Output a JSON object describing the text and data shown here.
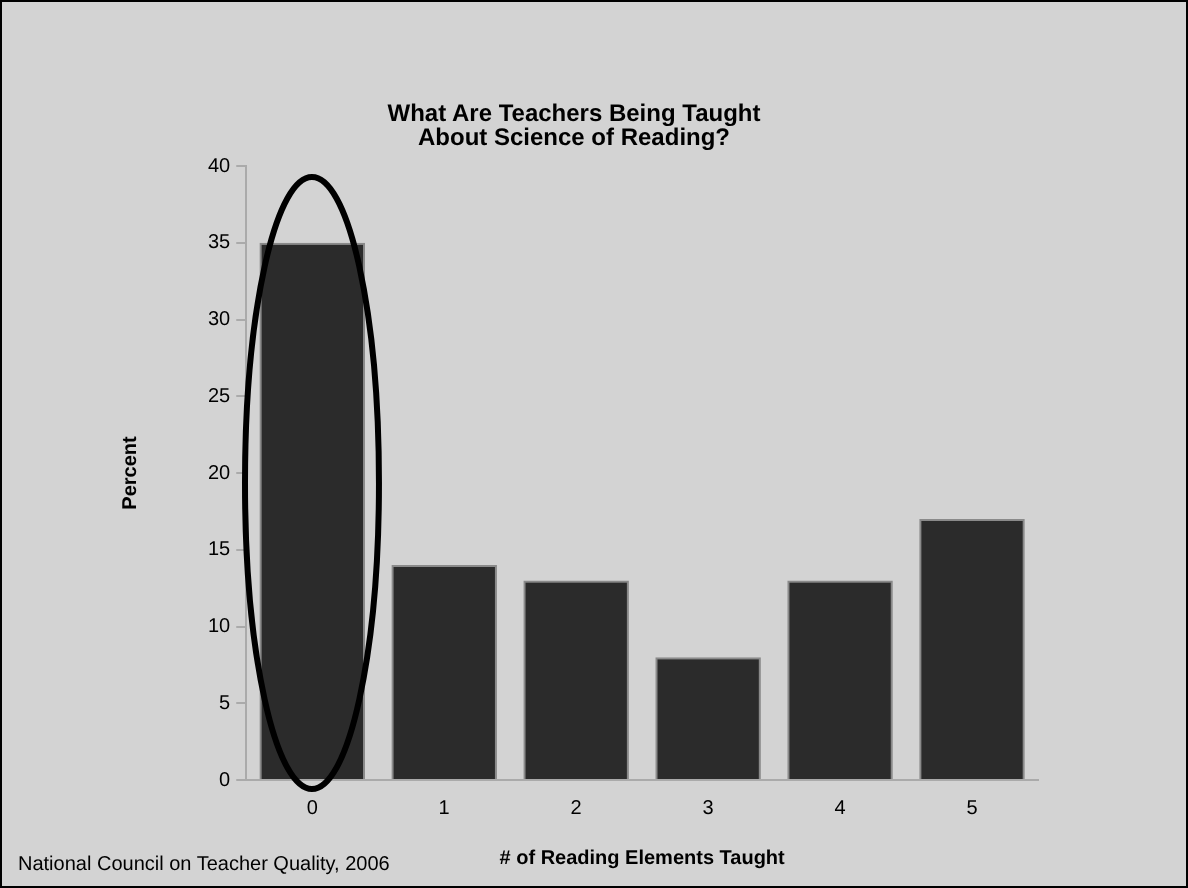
{
  "chart_data": {
    "type": "bar",
    "title": [
      "What Are Teachers Being Taught",
      "About Science of Reading?"
    ],
    "categories": [
      "0",
      "1",
      "2",
      "3",
      "4",
      "5"
    ],
    "values": [
      35,
      14,
      13,
      8,
      13,
      17
    ],
    "color": "#2b2b2b",
    "xlabel": "# of Reading Elements Taught",
    "ylabel": "Percent",
    "ylim": [
      0,
      40
    ],
    "yticks": [
      0,
      5,
      10,
      15,
      20,
      25,
      30,
      35,
      40
    ],
    "grid": false,
    "legend": false,
    "annotations": [
      "National Council on Teacher Quality, 2006"
    ]
  }
}
